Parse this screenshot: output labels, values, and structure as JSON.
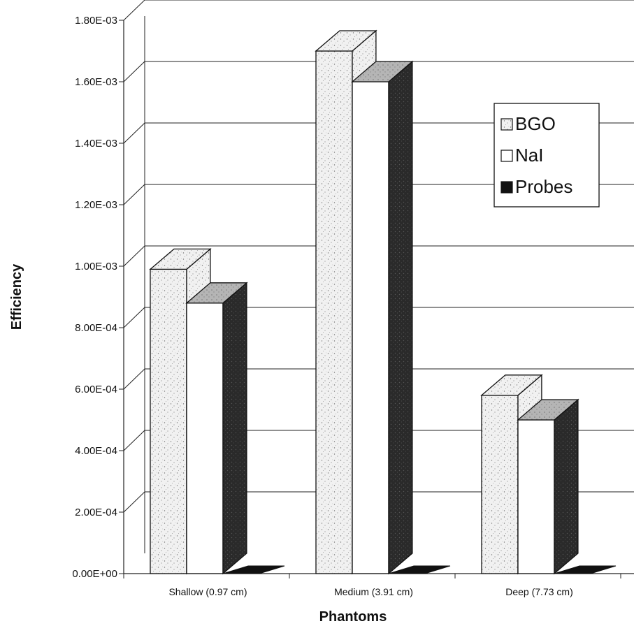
{
  "chart_data": {
    "type": "bar",
    "title": "",
    "xlabel": "Phantoms",
    "ylabel": "Efficiency",
    "categories": [
      "Shallow (0.97 cm)",
      "Medium (3.91 cm)",
      "Deep (7.73 cm)"
    ],
    "series": [
      {
        "name": "BGO",
        "values": [
          0.00099,
          0.0017,
          0.00058
        ],
        "color": "#e6e6e6",
        "pattern": "stipple"
      },
      {
        "name": "NaI",
        "values": [
          0.00088,
          0.0016,
          0.0005
        ],
        "color": "#ffffff"
      },
      {
        "name": "Probes",
        "values": [
          0,
          0,
          0
        ],
        "color": "#111111"
      }
    ],
    "ylim": [
      0,
      0.0018
    ],
    "yticks": [
      "0.00E+00",
      "2.00E-04",
      "4.00E-04",
      "6.00E-04",
      "8.00E-04",
      "1.00E-03",
      "1.20E-03",
      "1.40E-03",
      "1.60E-03",
      "1.80E-03"
    ],
    "grid": true,
    "legend_position": "top-right",
    "legend_labels": [
      "BGO",
      "NaI",
      "Probes"
    ]
  }
}
